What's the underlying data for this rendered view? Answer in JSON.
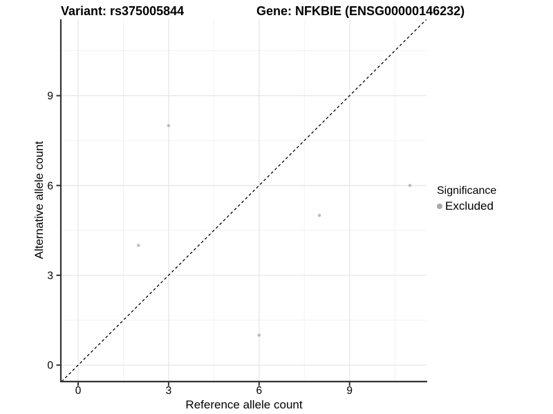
{
  "titles": {
    "variant": "Variant: rs375005844",
    "gene": "Gene: NFKBIE (ENSG00000146232)"
  },
  "legend": {
    "title": "Significance",
    "items": [
      {
        "label": "Excluded",
        "color": "#a8a8a8"
      }
    ],
    "position": "right"
  },
  "chart_data": {
    "type": "scatter",
    "xlabel": "Reference allele count",
    "ylabel": "Alternative allele count",
    "xlim": [
      -0.55,
      11.55
    ],
    "ylim": [
      -0.55,
      11.55
    ],
    "x_ticks": [
      0,
      3,
      6,
      9
    ],
    "y_ticks": [
      0,
      3,
      6,
      9
    ],
    "grid": {
      "on": true,
      "minor_breaks": [
        1.5,
        4.5,
        7.5,
        10.5
      ],
      "major_color": "#e6e6e6",
      "minor_color": "#f2f2f2"
    },
    "series": [
      {
        "name": "Excluded",
        "color": "#bdbdbd",
        "point_radius": 2.3,
        "points": [
          {
            "x": 2,
            "y": 4
          },
          {
            "x": 3,
            "y": 8
          },
          {
            "x": 6,
            "y": 1
          },
          {
            "x": 8,
            "y": 5
          },
          {
            "x": 11,
            "y": 6
          }
        ]
      }
    ],
    "reference_line": {
      "slope": 1,
      "intercept": 0,
      "style": "dashed",
      "color": "#000000"
    },
    "axis": {
      "line_color": "#333333",
      "tick_color": "#333333",
      "tick_label_color": "#000000",
      "tick_label_size": 15.5
    }
  }
}
